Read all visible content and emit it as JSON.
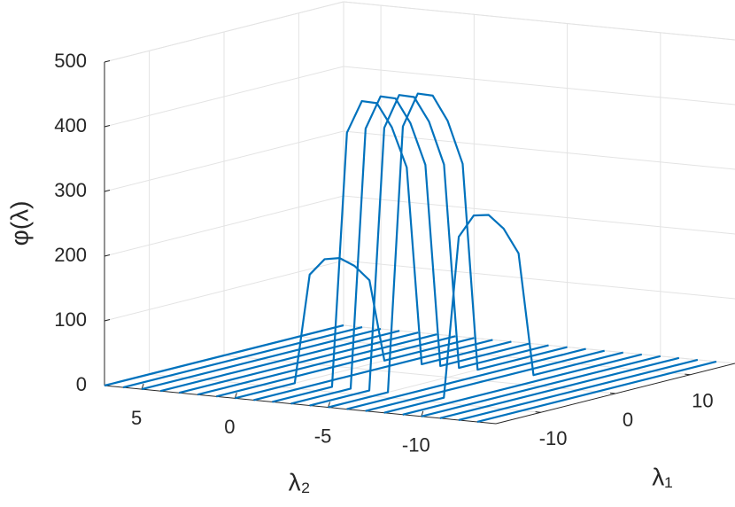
{
  "chart_data": {
    "type": "waterfall3d",
    "xlabel": "λ₁",
    "ylabel": "λ₂",
    "zlabel": "φ(λ)",
    "color": "#0072bd",
    "grid": true,
    "xlim": [
      -16,
      16
    ],
    "xticks": [
      -10,
      0,
      10
    ],
    "ylim": [
      -14,
      7
    ],
    "yticks": [
      5,
      0,
      -5,
      -10
    ],
    "zlim": [
      0,
      500
    ],
    "zticks": [
      0,
      100,
      200,
      300,
      400,
      500
    ],
    "x": [
      -16,
      -14,
      -12,
      -10,
      -8,
      -6,
      -4,
      -2,
      0,
      2,
      4,
      6,
      8,
      10,
      12,
      14,
      16
    ],
    "lines": [
      {
        "lambda2": 7,
        "values": [
          0,
          0,
          0,
          0,
          0,
          0,
          0,
          0,
          0,
          0,
          0,
          0,
          0,
          0,
          0,
          0,
          0
        ]
      },
      {
        "lambda2": 6,
        "values": [
          0,
          0,
          0,
          0,
          0,
          0,
          0,
          0,
          0,
          0,
          0,
          0,
          0,
          0,
          0,
          0,
          0
        ]
      },
      {
        "lambda2": 5,
        "values": [
          0,
          0,
          0,
          0,
          0,
          0,
          0,
          0,
          0,
          0,
          0,
          0,
          0,
          0,
          0,
          0,
          0
        ]
      },
      {
        "lambda2": 4,
        "values": [
          0,
          0,
          0,
          0,
          0,
          0,
          0,
          0,
          0,
          0,
          0,
          0,
          0,
          0,
          0,
          0,
          0
        ]
      },
      {
        "lambda2": 3,
        "values": [
          0,
          0,
          0,
          0,
          0,
          0,
          0,
          0,
          0,
          0,
          0,
          0,
          0,
          0,
          0,
          0,
          0
        ]
      },
      {
        "lambda2": 2,
        "values": [
          0,
          0,
          0,
          0,
          0,
          0,
          0,
          0,
          0,
          0,
          0,
          0,
          0,
          0,
          0,
          0,
          0
        ]
      },
      {
        "lambda2": 1,
        "values": [
          0,
          0,
          0,
          0,
          0,
          0,
          0,
          0,
          0,
          0,
          0,
          0,
          0,
          0,
          0,
          0,
          0
        ]
      },
      {
        "lambda2": 0,
        "values": [
          0,
          0,
          0,
          0,
          0,
          162,
          180,
          176,
          158,
          130,
          0,
          0,
          0,
          0,
          0,
          0,
          0
        ]
      },
      {
        "lambda2": -1,
        "values": [
          0,
          0,
          0,
          0,
          0,
          0,
          0,
          0,
          0,
          0,
          0,
          0,
          0,
          0,
          0,
          0,
          0
        ]
      },
      {
        "lambda2": -2,
        "values": [
          0,
          0,
          0,
          0,
          0,
          387,
          430,
          421,
          378,
          310,
          0,
          0,
          0,
          0,
          0,
          0,
          0
        ]
      },
      {
        "lambda2": -3,
        "values": [
          0,
          0,
          0,
          0,
          0,
          396,
          440,
          431,
          387,
          317,
          0,
          0,
          0,
          0,
          0,
          0,
          0
        ]
      },
      {
        "lambda2": -4,
        "values": [
          0,
          0,
          0,
          0,
          0,
          400,
          445,
          436,
          392,
          320,
          0,
          0,
          0,
          0,
          0,
          0,
          0
        ]
      },
      {
        "lambda2": -5,
        "values": [
          0,
          0,
          0,
          0,
          0,
          405,
          450,
          441,
          396,
          324,
          0,
          0,
          0,
          0,
          0,
          0,
          0
        ]
      },
      {
        "lambda2": -6,
        "values": [
          0,
          0,
          0,
          0,
          0,
          0,
          0,
          0,
          0,
          0,
          0,
          0,
          0,
          0,
          0,
          0,
          0
        ]
      },
      {
        "lambda2": -7,
        "values": [
          0,
          0,
          0,
          0,
          0,
          0,
          0,
          0,
          0,
          0,
          0,
          0,
          0,
          0,
          0,
          0,
          0
        ]
      },
      {
        "lambda2": -8,
        "values": [
          0,
          0,
          0,
          0,
          0,
          243,
          270,
          265,
          238,
          194,
          0,
          0,
          0,
          0,
          0,
          0,
          0
        ]
      },
      {
        "lambda2": -9,
        "values": [
          0,
          0,
          0,
          0,
          0,
          0,
          0,
          0,
          0,
          0,
          0,
          0,
          0,
          0,
          0,
          0,
          0
        ]
      },
      {
        "lambda2": -10,
        "values": [
          0,
          0,
          0,
          0,
          0,
          0,
          0,
          0,
          0,
          0,
          0,
          0,
          0,
          0,
          0,
          0,
          0
        ]
      },
      {
        "lambda2": -11,
        "values": [
          0,
          0,
          0,
          0,
          0,
          0,
          0,
          0,
          0,
          0,
          0,
          0,
          0,
          0,
          0,
          0,
          0
        ]
      },
      {
        "lambda2": -12,
        "values": [
          0,
          0,
          0,
          0,
          0,
          0,
          0,
          0,
          0,
          0,
          0,
          0,
          0,
          0,
          0,
          0,
          0
        ]
      },
      {
        "lambda2": -13,
        "values": [
          0,
          0,
          0,
          0,
          0,
          0,
          0,
          0,
          0,
          0,
          0,
          0,
          0,
          0,
          0,
          0,
          0
        ]
      }
    ]
  }
}
